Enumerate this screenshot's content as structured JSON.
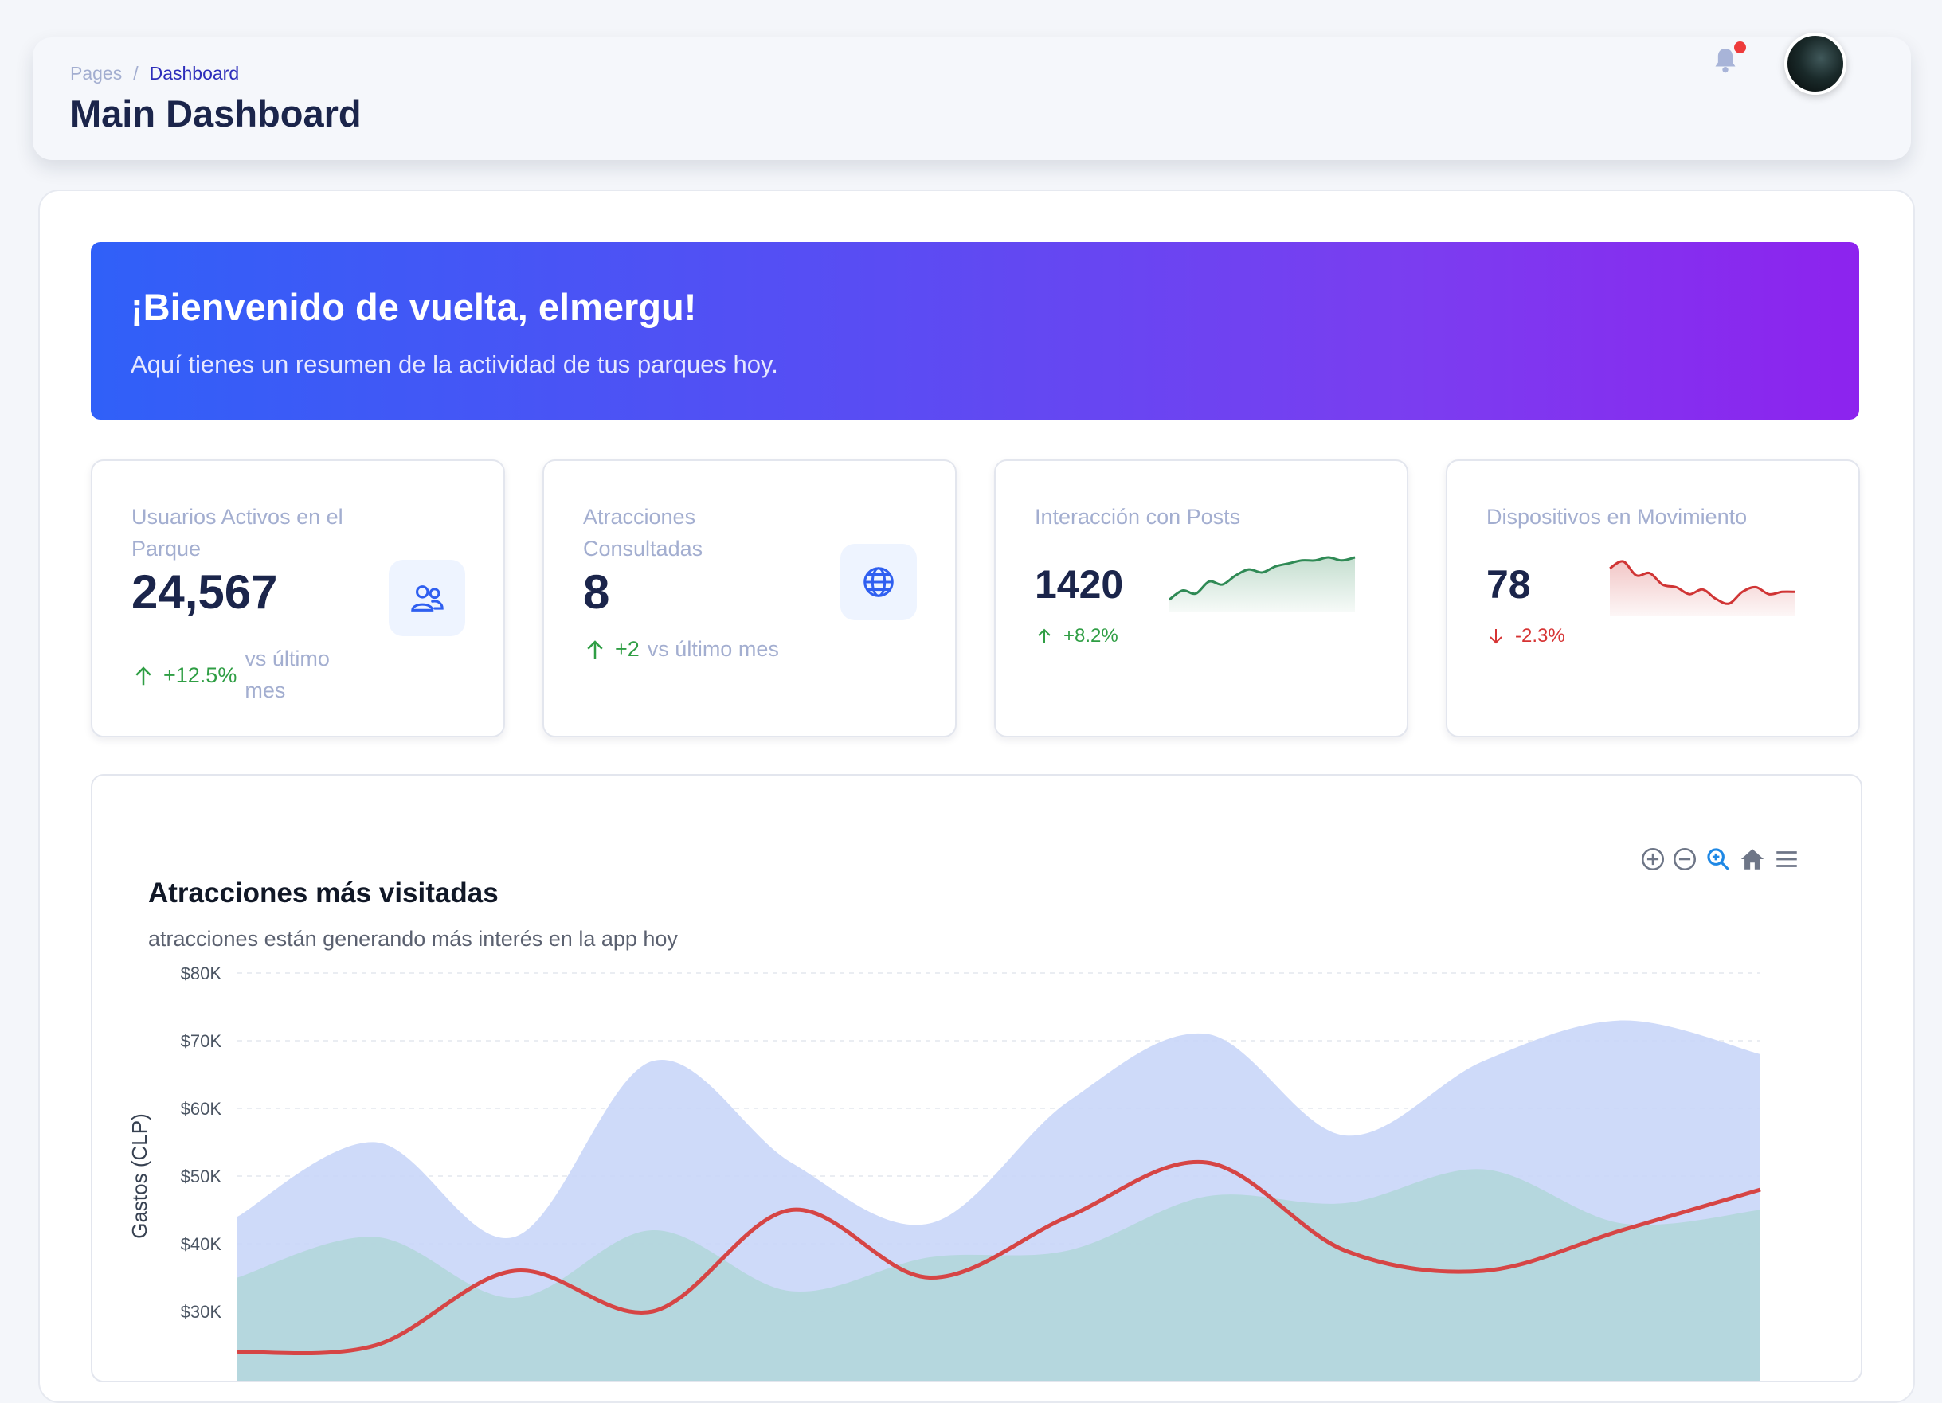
{
  "header": {
    "breadcrumb_root": "Pages",
    "breadcrumb_separator": "/",
    "breadcrumb_current": "Dashboard",
    "title": "Main Dashboard",
    "has_notification": true
  },
  "welcome": {
    "title": "¡Bienvenido de vuelta, elmergu!",
    "subtitle": "Aquí tienes un resumen de la actividad de tus parques hoy."
  },
  "stats": [
    {
      "label": "Usuarios Activos en el Parque",
      "value": "24,567",
      "change": "+12.5%",
      "change_dir": "up",
      "compare": "vs último mes",
      "icon": "users-icon"
    },
    {
      "label": "Atracciones Consultadas",
      "value": "8",
      "change": "+2",
      "change_dir": "up",
      "compare": "vs último mes",
      "icon": "globe-icon"
    },
    {
      "label": "Interacción con Posts",
      "value": "1420",
      "change": "+8.2%",
      "change_dir": "up",
      "sparkline_color": "#2f8a55"
    },
    {
      "label": "Dispositivos en Movimiento",
      "value": "78",
      "change": "-2.3%",
      "change_dir": "down",
      "sparkline_color": "#d03535"
    }
  ],
  "chart": {
    "title": "Atracciones más visitadas",
    "subtitle": "atracciones están generando más interés en la app hoy",
    "toolbar": [
      "zoom-in-icon",
      "zoom-out-icon",
      "zoom-select-icon",
      "home-icon",
      "menu-icon"
    ]
  },
  "chart_data": {
    "type": "area",
    "title": "Atracciones más visitadas",
    "ylabel": "Gastos (CLP)",
    "ylim": [
      20000,
      80000
    ],
    "yticks": [
      "$30K",
      "$40K",
      "$50K",
      "$60K",
      "$70K",
      "$80K"
    ],
    "grid": true,
    "series": [
      {
        "type": "area",
        "color": "#c9d6f8",
        "values": [
          44000,
          55000,
          41000,
          67000,
          52000,
          43000,
          61000,
          71000,
          56000,
          67000,
          73000,
          68000
        ]
      },
      {
        "type": "area",
        "color": "#b2d6da",
        "values": [
          35000,
          41000,
          32000,
          42000,
          33000,
          38000,
          39000,
          47000,
          46000,
          51000,
          43000,
          45000
        ]
      },
      {
        "type": "line",
        "color": "#d64545",
        "values": [
          24000,
          25000,
          36000,
          30000,
          45000,
          35000,
          44000,
          52000,
          39000,
          36000,
          42000,
          48000
        ]
      }
    ]
  },
  "sparklines": {
    "interaccion": [
      8,
      11,
      10,
      14,
      13,
      16,
      18,
      17,
      19,
      20,
      21,
      21,
      22,
      21,
      22
    ],
    "dispositivos": [
      18,
      21,
      15,
      16,
      11,
      10,
      7,
      9,
      5,
      3,
      8,
      10,
      7,
      8,
      8
    ]
  }
}
